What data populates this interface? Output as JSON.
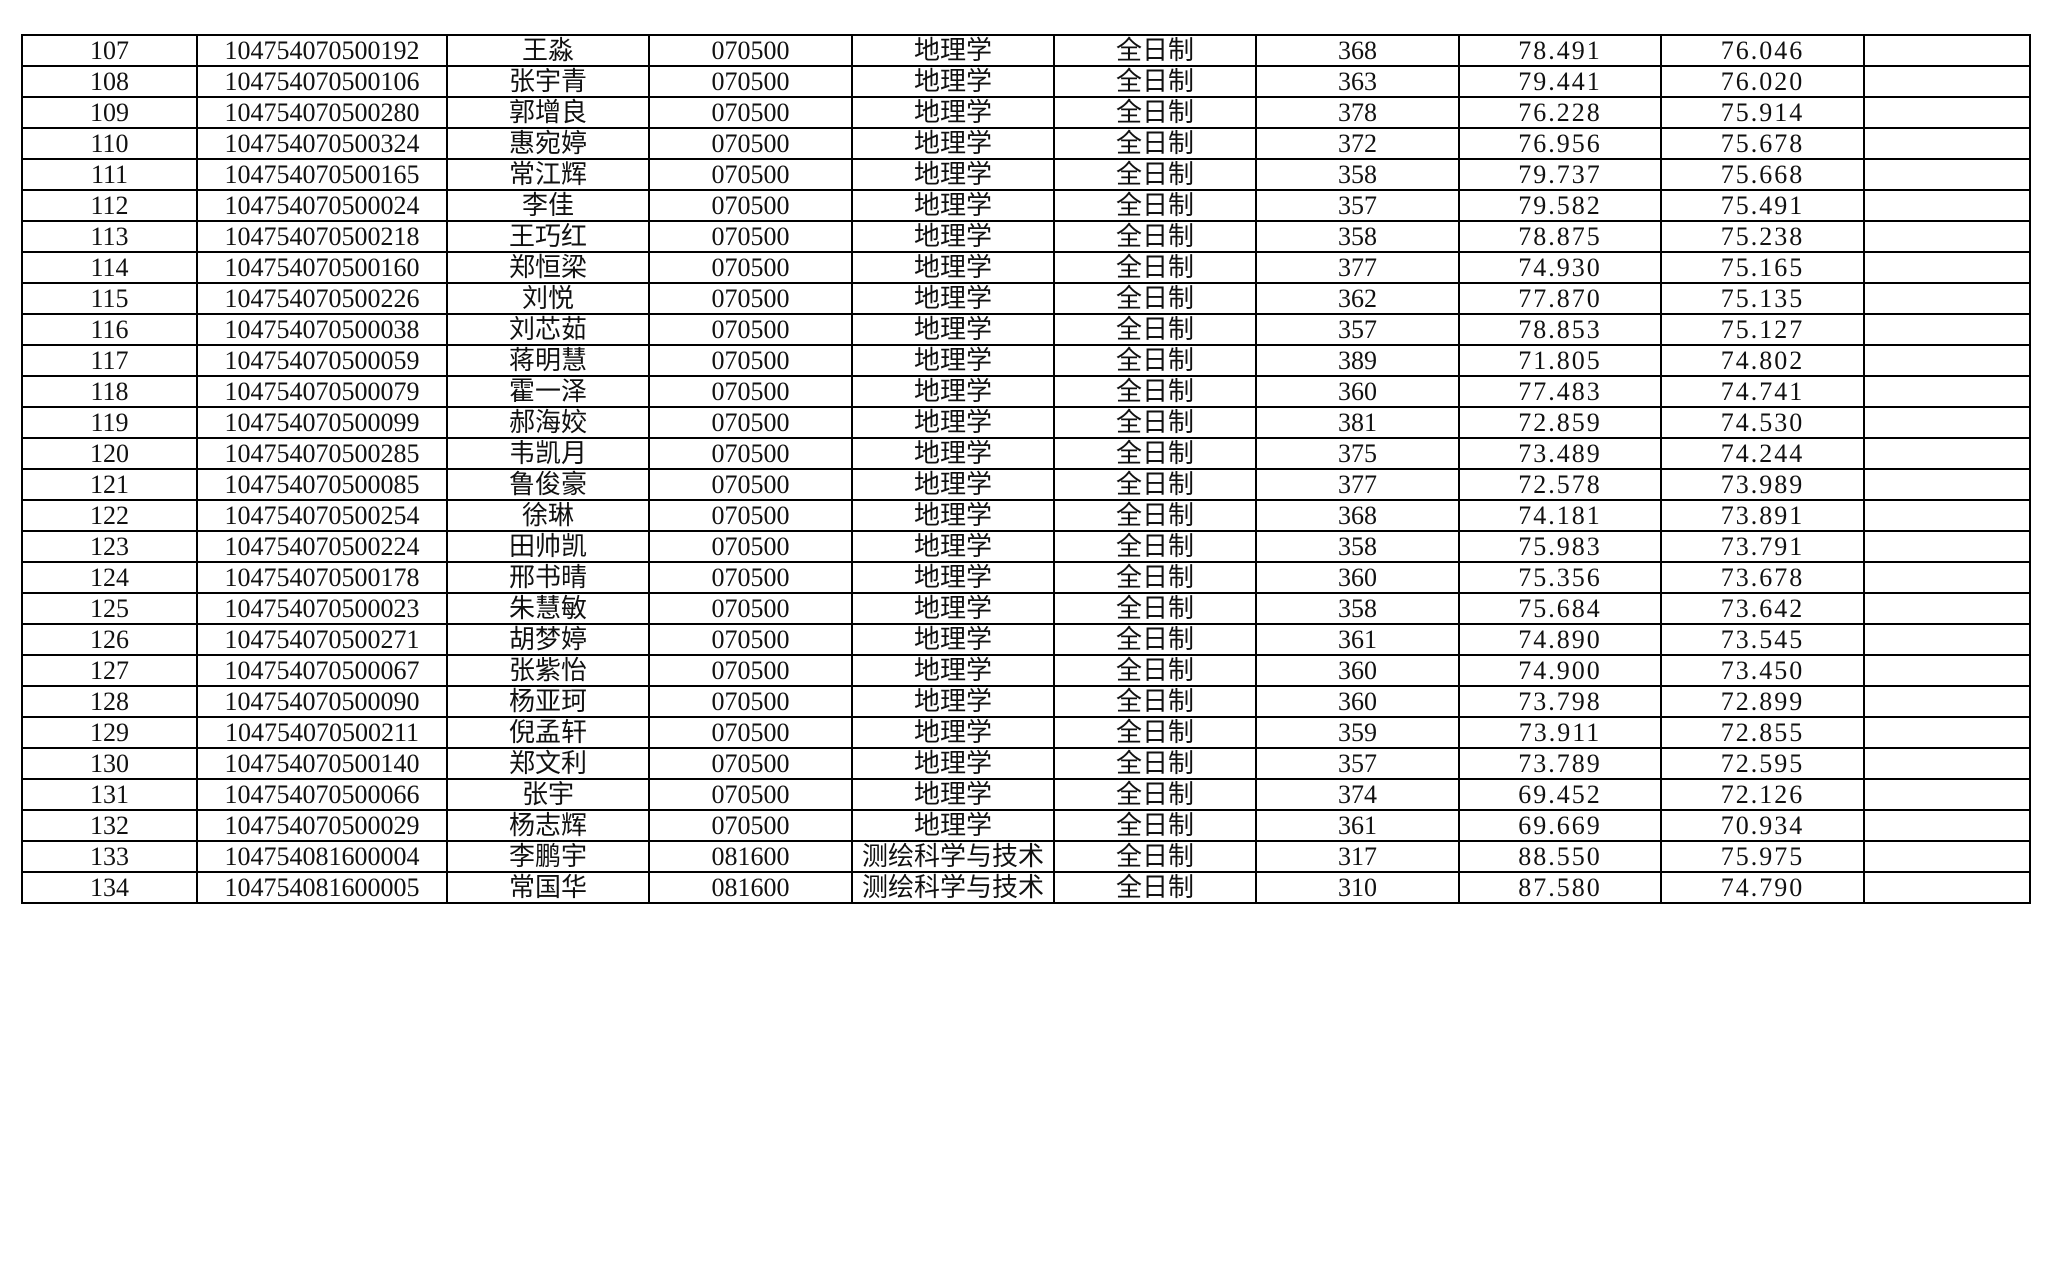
{
  "rows": [
    [
      "107",
      "104754070500192",
      "王淼",
      "070500",
      "地理学",
      "全日制",
      "368",
      "78.491",
      "76.046",
      ""
    ],
    [
      "108",
      "104754070500106",
      "张宇青",
      "070500",
      "地理学",
      "全日制",
      "363",
      "79.441",
      "76.020",
      ""
    ],
    [
      "109",
      "104754070500280",
      "郭增良",
      "070500",
      "地理学",
      "全日制",
      "378",
      "76.228",
      "75.914",
      ""
    ],
    [
      "110",
      "104754070500324",
      "惠宛婷",
      "070500",
      "地理学",
      "全日制",
      "372",
      "76.956",
      "75.678",
      ""
    ],
    [
      "111",
      "104754070500165",
      "常江辉",
      "070500",
      "地理学",
      "全日制",
      "358",
      "79.737",
      "75.668",
      ""
    ],
    [
      "112",
      "104754070500024",
      "李佳",
      "070500",
      "地理学",
      "全日制",
      "357",
      "79.582",
      "75.491",
      ""
    ],
    [
      "113",
      "104754070500218",
      "王巧红",
      "070500",
      "地理学",
      "全日制",
      "358",
      "78.875",
      "75.238",
      ""
    ],
    [
      "114",
      "104754070500160",
      "郑恒梁",
      "070500",
      "地理学",
      "全日制",
      "377",
      "74.930",
      "75.165",
      ""
    ],
    [
      "115",
      "104754070500226",
      "刘悦",
      "070500",
      "地理学",
      "全日制",
      "362",
      "77.870",
      "75.135",
      ""
    ],
    [
      "116",
      "104754070500038",
      "刘芯茹",
      "070500",
      "地理学",
      "全日制",
      "357",
      "78.853",
      "75.127",
      ""
    ],
    [
      "117",
      "104754070500059",
      "蒋明慧",
      "070500",
      "地理学",
      "全日制",
      "389",
      "71.805",
      "74.802",
      ""
    ],
    [
      "118",
      "104754070500079",
      "霍一泽",
      "070500",
      "地理学",
      "全日制",
      "360",
      "77.483",
      "74.741",
      ""
    ],
    [
      "119",
      "104754070500099",
      "郝海姣",
      "070500",
      "地理学",
      "全日制",
      "381",
      "72.859",
      "74.530",
      ""
    ],
    [
      "120",
      "104754070500285",
      "韦凯月",
      "070500",
      "地理学",
      "全日制",
      "375",
      "73.489",
      "74.244",
      ""
    ],
    [
      "121",
      "104754070500085",
      "鲁俊豪",
      "070500",
      "地理学",
      "全日制",
      "377",
      "72.578",
      "73.989",
      ""
    ],
    [
      "122",
      "104754070500254",
      "徐琳",
      "070500",
      "地理学",
      "全日制",
      "368",
      "74.181",
      "73.891",
      ""
    ],
    [
      "123",
      "104754070500224",
      "田帅凯",
      "070500",
      "地理学",
      "全日制",
      "358",
      "75.983",
      "73.791",
      ""
    ],
    [
      "124",
      "104754070500178",
      "邢书晴",
      "070500",
      "地理学",
      "全日制",
      "360",
      "75.356",
      "73.678",
      ""
    ],
    [
      "125",
      "104754070500023",
      "朱慧敏",
      "070500",
      "地理学",
      "全日制",
      "358",
      "75.684",
      "73.642",
      ""
    ],
    [
      "126",
      "104754070500271",
      "胡梦婷",
      "070500",
      "地理学",
      "全日制",
      "361",
      "74.890",
      "73.545",
      ""
    ],
    [
      "127",
      "104754070500067",
      "张紫怡",
      "070500",
      "地理学",
      "全日制",
      "360",
      "74.900",
      "73.450",
      ""
    ],
    [
      "128",
      "104754070500090",
      "杨亚珂",
      "070500",
      "地理学",
      "全日制",
      "360",
      "73.798",
      "72.899",
      ""
    ],
    [
      "129",
      "104754070500211",
      "倪孟轩",
      "070500",
      "地理学",
      "全日制",
      "359",
      "73.911",
      "72.855",
      ""
    ],
    [
      "130",
      "104754070500140",
      "郑文利",
      "070500",
      "地理学",
      "全日制",
      "357",
      "73.789",
      "72.595",
      ""
    ],
    [
      "131",
      "104754070500066",
      "张宇",
      "070500",
      "地理学",
      "全日制",
      "374",
      "69.452",
      "72.126",
      ""
    ],
    [
      "132",
      "104754070500029",
      "杨志辉",
      "070500",
      "地理学",
      "全日制",
      "361",
      "69.669",
      "70.934",
      ""
    ],
    [
      "133",
      "104754081600004",
      "李鹏宇",
      "081600",
      "测绘科学与技术",
      "全日制",
      "317",
      "88.550",
      "75.975",
      ""
    ],
    [
      "134",
      "104754081600005",
      "常国华",
      "081600",
      "测绘科学与技术",
      "全日制",
      "310",
      "87.580",
      "74.790",
      ""
    ]
  ]
}
